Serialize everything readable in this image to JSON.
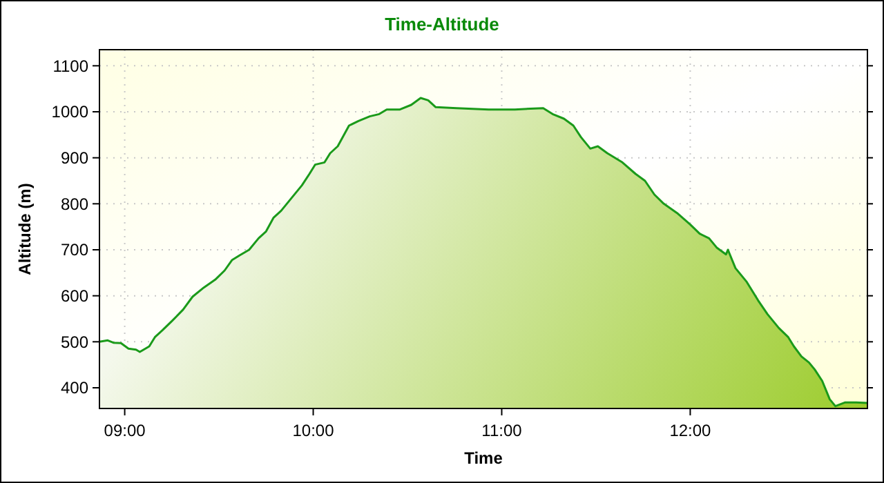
{
  "chart_data": {
    "type": "area",
    "title": "Time-Altitude",
    "xlabel": "Time",
    "ylabel": "Altitude (m)",
    "x": [
      8.866,
      8.91,
      8.94,
      8.98,
      9.02,
      9.06,
      9.08,
      9.13,
      9.16,
      9.2,
      9.25,
      9.31,
      9.36,
      9.42,
      9.48,
      9.53,
      9.57,
      9.61,
      9.66,
      9.71,
      9.75,
      9.79,
      9.83,
      9.88,
      9.94,
      9.98,
      10.01,
      10.06,
      10.09,
      10.13,
      10.19,
      10.24,
      10.3,
      10.35,
      10.39,
      10.46,
      10.52,
      10.57,
      10.61,
      10.65,
      10.76,
      10.93,
      11.07,
      11.22,
      11.27,
      11.33,
      11.38,
      11.42,
      11.47,
      11.51,
      11.56,
      11.64,
      11.71,
      11.76,
      11.81,
      11.86,
      11.93,
      12,
      12.05,
      12.1,
      12.14,
      12.19,
      12.2,
      12.24,
      12.3,
      12.36,
      12.41,
      12.47,
      12.52,
      12.55,
      12.59,
      12.63,
      12.66,
      12.7,
      12.74,
      12.77,
      12.82,
      12.88,
      12.94
    ],
    "series": [
      {
        "color": "#1a9a1a",
        "values": [
          500,
          503,
          498,
          497,
          485,
          483,
          478,
          490,
          510,
          525,
          545,
          570,
          598,
          618,
          635,
          655,
          678,
          688,
          700,
          725,
          740,
          770,
          785,
          810,
          840,
          865,
          885,
          890,
          910,
          925,
          970,
          980,
          990,
          995,
          1005,
          1005,
          1015,
          1030,
          1025,
          1010,
          1008,
          1005,
          1005,
          1008,
          995,
          985,
          970,
          945,
          920,
          925,
          910,
          890,
          865,
          850,
          820,
          800,
          780,
          755,
          735,
          725,
          705,
          690,
          700,
          660,
          630,
          590,
          560,
          530,
          510,
          490,
          468,
          455,
          440,
          415,
          375,
          360,
          368,
          368,
          367
        ]
      }
    ],
    "xlim": [
      8.866,
      12.94
    ],
    "ylim": [
      355,
      1135
    ],
    "xticks": [
      {
        "value": 9,
        "label": "09:00"
      },
      {
        "value": 10,
        "label": "10:00"
      },
      {
        "value": 11,
        "label": "11:00"
      },
      {
        "value": 12,
        "label": "12:00"
      }
    ],
    "yticks": [
      400,
      500,
      600,
      700,
      800,
      900,
      1000,
      1100
    ],
    "grid": true
  }
}
